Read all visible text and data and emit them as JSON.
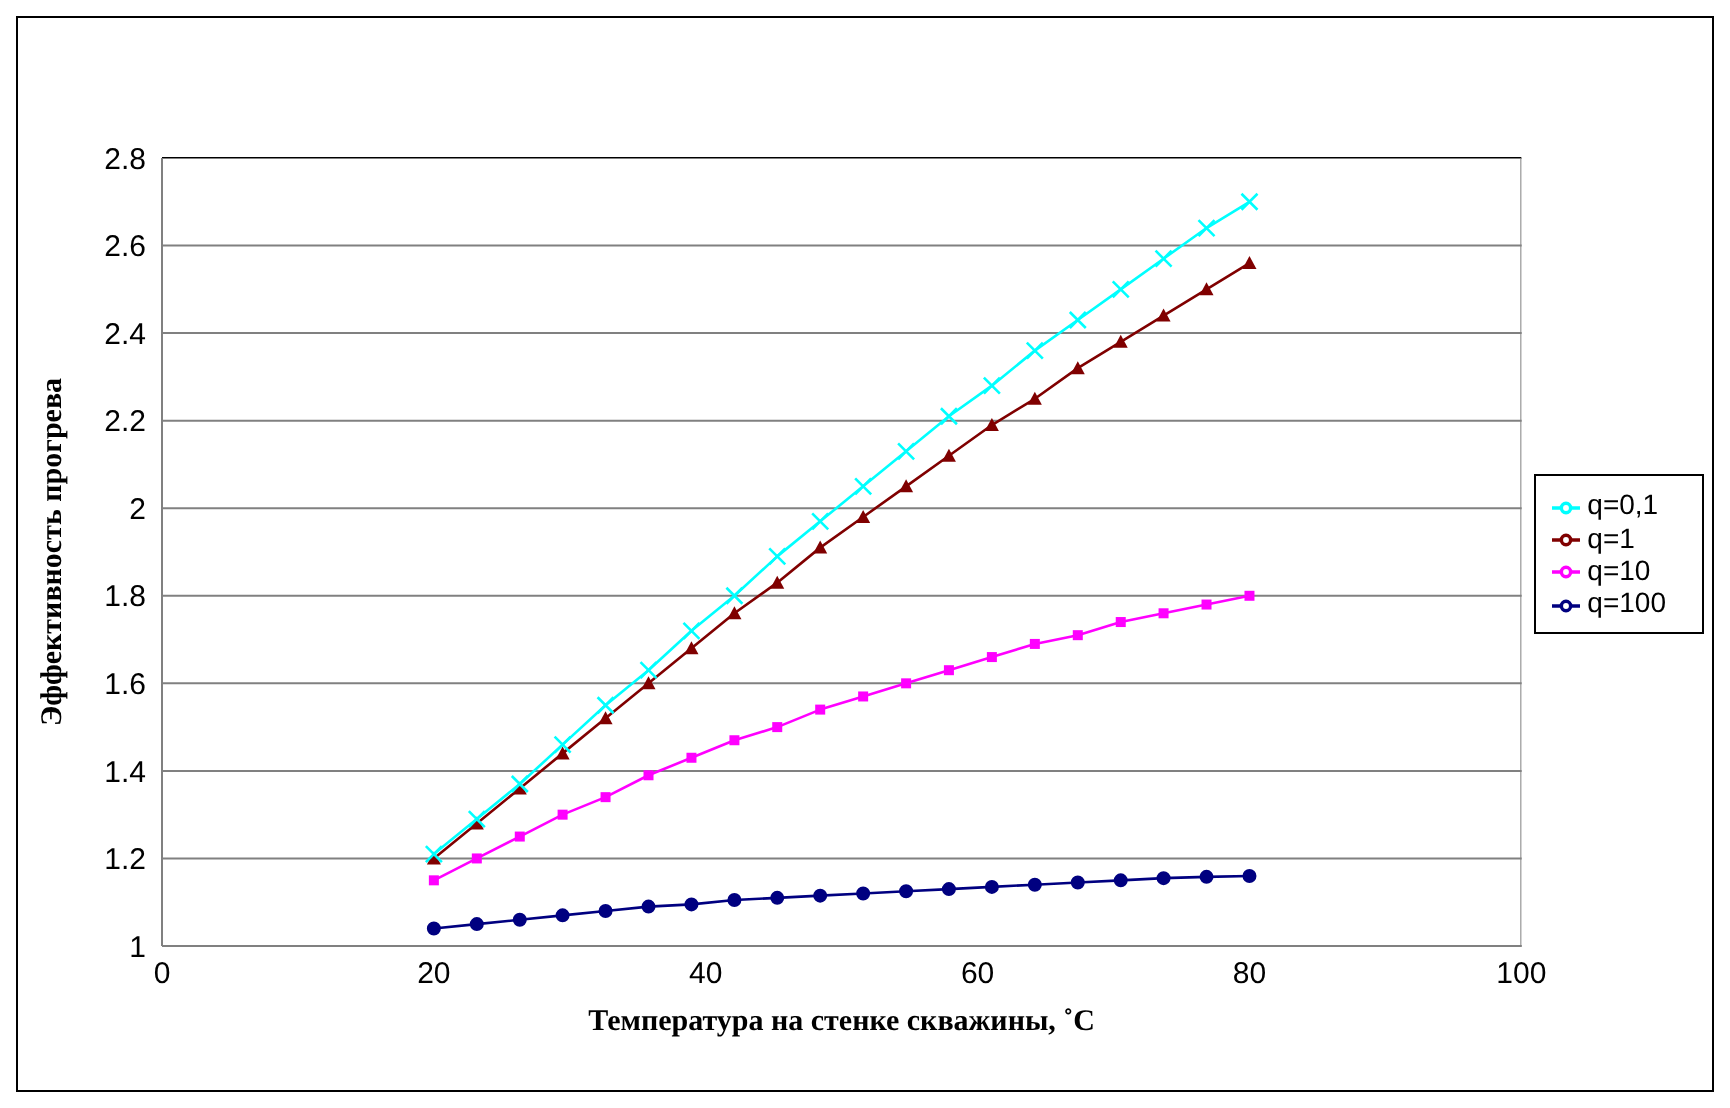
{
  "chart_data": {
    "type": "line",
    "xlabel": "Температура на стенке скважины, ˚С",
    "ylabel": "Эффективность прогрева",
    "x": [
      20,
      23.16,
      26.32,
      29.47,
      32.63,
      35.79,
      38.95,
      42.11,
      45.26,
      48.42,
      51.58,
      54.74,
      57.89,
      61.05,
      64.21,
      67.37,
      70.53,
      73.68,
      76.84,
      80
    ],
    "series": [
      {
        "name": "q=100",
        "color": "#000080",
        "marker": "circle",
        "values": [
          1.04,
          1.05,
          1.06,
          1.07,
          1.08,
          1.09,
          1.095,
          1.105,
          1.11,
          1.115,
          1.12,
          1.125,
          1.13,
          1.135,
          1.14,
          1.145,
          1.15,
          1.155,
          1.158,
          1.16
        ]
      },
      {
        "name": "q=10",
        "color": "#ff00ff",
        "marker": "square",
        "values": [
          1.15,
          1.2,
          1.25,
          1.3,
          1.34,
          1.39,
          1.43,
          1.47,
          1.5,
          1.54,
          1.57,
          1.6,
          1.63,
          1.66,
          1.69,
          1.71,
          1.74,
          1.76,
          1.78,
          1.8
        ]
      },
      {
        "name": "q=1",
        "color": "#800000",
        "marker": "triangle",
        "values": [
          1.2,
          1.28,
          1.36,
          1.44,
          1.52,
          1.6,
          1.68,
          1.76,
          1.83,
          1.91,
          1.98,
          2.05,
          2.12,
          2.19,
          2.25,
          2.32,
          2.38,
          2.44,
          2.5,
          2.56
        ]
      },
      {
        "name": "q=0,1",
        "color": "#00ffff",
        "marker": "cross",
        "values": [
          1.21,
          1.29,
          1.37,
          1.46,
          1.55,
          1.63,
          1.72,
          1.8,
          1.89,
          1.97,
          2.05,
          2.13,
          2.21,
          2.28,
          2.36,
          2.43,
          2.5,
          2.57,
          2.64,
          2.7
        ]
      }
    ],
    "xlim": [
      0,
      100
    ],
    "xticks": [
      0,
      20,
      40,
      60,
      80,
      100
    ],
    "ylim": [
      1,
      2.8
    ],
    "yticks": [
      1,
      1.2,
      1.4,
      1.6,
      1.8,
      2,
      2.2,
      2.4,
      2.6,
      2.8
    ],
    "grid": "y",
    "legend": "right",
    "line_style": "solid"
  }
}
